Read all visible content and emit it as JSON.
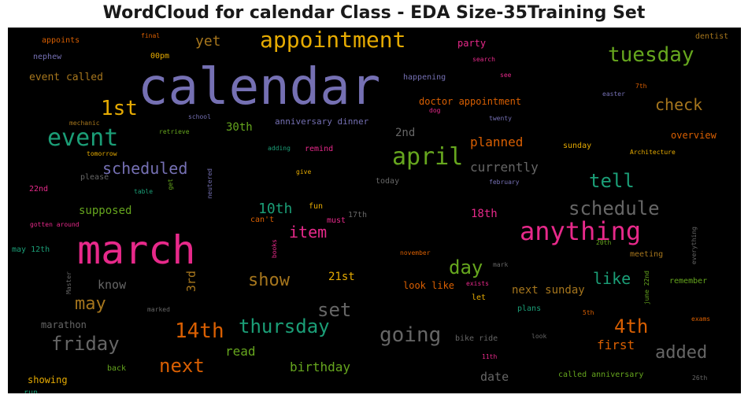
{
  "chart_data": {
    "type": "wordcloud",
    "title": "WordCloud for calendar Class - EDA Size-35Training Set",
    "background": "#000000",
    "words": [
      {
        "text": "calendar",
        "color": "#7570b3",
        "orientation": "horizontal"
      },
      {
        "text": "march",
        "color": "#e7298a",
        "orientation": "horizontal"
      },
      {
        "text": "appointment",
        "color": "#e6ab02",
        "orientation": "horizontal"
      },
      {
        "text": "anything",
        "color": "#e7298a",
        "orientation": "horizontal"
      },
      {
        "text": "tuesday",
        "color": "#66a61e",
        "orientation": "horizontal"
      },
      {
        "text": "event",
        "color": "#1b9e77",
        "orientation": "horizontal"
      },
      {
        "text": "april",
        "color": "#66a61e",
        "orientation": "horizontal"
      },
      {
        "text": "1st",
        "color": "#e6ab02",
        "orientation": "horizontal"
      },
      {
        "text": "schedule",
        "color": "#666666",
        "orientation": "horizontal"
      },
      {
        "text": "thursday",
        "color": "#1b9e77",
        "orientation": "horizontal"
      },
      {
        "text": "friday",
        "color": "#666666",
        "orientation": "horizontal"
      },
      {
        "text": "14th",
        "color": "#d95f02",
        "orientation": "horizontal"
      },
      {
        "text": "going",
        "color": "#666666",
        "orientation": "horizontal"
      },
      {
        "text": "4th",
        "color": "#d95f02",
        "orientation": "horizontal"
      },
      {
        "text": "next",
        "color": "#d95f02",
        "orientation": "horizontal"
      },
      {
        "text": "added",
        "color": "#666666",
        "orientation": "horizontal"
      },
      {
        "text": "tell",
        "color": "#1b9e77",
        "orientation": "horizontal"
      },
      {
        "text": "check",
        "color": "#a6761d",
        "orientation": "horizontal"
      },
      {
        "text": "scheduled",
        "color": "#7570b3",
        "orientation": "horizontal"
      },
      {
        "text": "day",
        "color": "#66a61e",
        "orientation": "horizontal"
      },
      {
        "text": "show",
        "color": "#a6761d",
        "orientation": "horizontal"
      },
      {
        "text": "may",
        "color": "#a6761d",
        "orientation": "horizontal"
      },
      {
        "text": "set",
        "color": "#666666",
        "orientation": "horizontal"
      },
      {
        "text": "item",
        "color": "#e7298a",
        "orientation": "horizontal"
      },
      {
        "text": "10th",
        "color": "#1b9e77",
        "orientation": "horizontal"
      },
      {
        "text": "yet",
        "color": "#a6761d",
        "orientation": "horizontal"
      },
      {
        "text": "like",
        "color": "#1b9e77",
        "orientation": "horizontal"
      },
      {
        "text": "planned",
        "color": "#d95f02",
        "orientation": "horizontal"
      },
      {
        "text": "currently",
        "color": "#666666",
        "orientation": "horizontal"
      },
      {
        "text": "birthday",
        "color": "#66a61e",
        "orientation": "horizontal"
      },
      {
        "text": "read",
        "color": "#66a61e",
        "orientation": "horizontal"
      },
      {
        "text": "first",
        "color": "#d95f02",
        "orientation": "horizontal"
      },
      {
        "text": "date",
        "color": "#666666",
        "orientation": "horizontal"
      },
      {
        "text": "next sunday",
        "color": "#a6761d",
        "orientation": "horizontal"
      },
      {
        "text": "know",
        "color": "#666666",
        "orientation": "horizontal"
      },
      {
        "text": "3rd",
        "color": "#a6761d",
        "orientation": "vertical"
      },
      {
        "text": "21st",
        "color": "#e6ab02",
        "orientation": "horizontal"
      },
      {
        "text": "30th",
        "color": "#66a61e",
        "orientation": "horizontal"
      },
      {
        "text": "supposed",
        "color": "#66a61e",
        "orientation": "horizontal"
      },
      {
        "text": "18th",
        "color": "#e7298a",
        "orientation": "horizontal"
      },
      {
        "text": "2nd",
        "color": "#666666",
        "orientation": "horizontal"
      },
      {
        "text": "event called",
        "color": "#a6761d",
        "orientation": "horizontal"
      },
      {
        "text": "doctor appointment",
        "color": "#d95f02",
        "orientation": "horizontal"
      },
      {
        "text": "anniversary dinner",
        "color": "#7570b3",
        "orientation": "horizontal"
      },
      {
        "text": "look like",
        "color": "#d95f02",
        "orientation": "horizontal"
      },
      {
        "text": "marathon",
        "color": "#666666",
        "orientation": "horizontal"
      },
      {
        "text": "showing",
        "color": "#e6ab02",
        "orientation": "horizontal"
      },
      {
        "text": "overview",
        "color": "#d95f02",
        "orientation": "horizontal"
      },
      {
        "text": "meeting",
        "color": "#a6761d",
        "orientation": "horizontal"
      },
      {
        "text": "remember",
        "color": "#66a61e",
        "orientation": "horizontal"
      },
      {
        "text": "called anniversary",
        "color": "#66a61e",
        "orientation": "horizontal"
      },
      {
        "text": "happening",
        "color": "#7570b3",
        "orientation": "horizontal"
      },
      {
        "text": "party",
        "color": "#e7298a",
        "orientation": "horizontal"
      },
      {
        "text": "bike ride",
        "color": "#666666",
        "orientation": "horizontal"
      },
      {
        "text": "plans",
        "color": "#1b9e77",
        "orientation": "horizontal"
      },
      {
        "text": "let",
        "color": "#e6ab02",
        "orientation": "horizontal"
      },
      {
        "text": "sunday",
        "color": "#e6ab02",
        "orientation": "horizontal"
      },
      {
        "text": "appoints",
        "color": "#d95f02",
        "orientation": "horizontal"
      },
      {
        "text": "nephew",
        "color": "#7570b3",
        "orientation": "horizontal"
      },
      {
        "text": "00pm",
        "color": "#e6ab02",
        "orientation": "horizontal"
      },
      {
        "text": "remind",
        "color": "#e7298a",
        "orientation": "horizontal"
      },
      {
        "text": "fun",
        "color": "#e6ab02",
        "orientation": "horizontal"
      },
      {
        "text": "can't",
        "color": "#d95f02",
        "orientation": "horizontal"
      },
      {
        "text": "must",
        "color": "#e7298a",
        "orientation": "horizontal"
      },
      {
        "text": "17th",
        "color": "#666666",
        "orientation": "horizontal"
      },
      {
        "text": "today",
        "color": "#666666",
        "orientation": "horizontal"
      },
      {
        "text": "please",
        "color": "#666666",
        "orientation": "horizontal"
      },
      {
        "text": "22nd",
        "color": "#e7298a",
        "orientation": "horizontal"
      },
      {
        "text": "may 12th",
        "color": "#1b9e77",
        "orientation": "horizontal"
      },
      {
        "text": "run",
        "color": "#1b9e77",
        "orientation": "horizontal"
      },
      {
        "text": "back",
        "color": "#66a61e",
        "orientation": "horizontal"
      },
      {
        "text": "dentist",
        "color": "#a6761d",
        "orientation": "horizontal"
      },
      {
        "text": "final",
        "color": "#d95f02",
        "orientation": "horizontal"
      },
      {
        "text": "search",
        "color": "#e7298a",
        "orientation": "horizontal"
      },
      {
        "text": "see",
        "color": "#e7298a",
        "orientation": "horizontal"
      },
      {
        "text": "7th",
        "color": "#d95f02",
        "orientation": "horizontal"
      },
      {
        "text": "easter",
        "color": "#7570b3",
        "orientation": "horizontal"
      },
      {
        "text": "dog",
        "color": "#e7298a",
        "orientation": "horizontal"
      },
      {
        "text": "twenty",
        "color": "#7570b3",
        "orientation": "horizontal"
      },
      {
        "text": "mechanic",
        "color": "#a6761d",
        "orientation": "horizontal"
      },
      {
        "text": "school",
        "color": "#7570b3",
        "orientation": "horizontal"
      },
      {
        "text": "retrieve",
        "color": "#66a61e",
        "orientation": "horizontal"
      },
      {
        "text": "adding",
        "color": "#1b9e77",
        "orientation": "horizontal"
      },
      {
        "text": "tomorrow",
        "color": "#e6ab02",
        "orientation": "horizontal"
      },
      {
        "text": "get",
        "color": "#66a61e",
        "orientation": "vertical"
      },
      {
        "text": "neutered",
        "color": "#7570b3",
        "orientation": "vertical"
      },
      {
        "text": "give",
        "color": "#e6ab02",
        "orientation": "horizontal"
      },
      {
        "text": "february",
        "color": "#7570b3",
        "orientation": "horizontal"
      },
      {
        "text": "Architecture",
        "color": "#e6ab02",
        "orientation": "horizontal"
      },
      {
        "text": "table",
        "color": "#1b9e77",
        "orientation": "horizontal"
      },
      {
        "text": "gotten around",
        "color": "#e7298a",
        "orientation": "horizontal"
      },
      {
        "text": "books",
        "color": "#e7298a",
        "orientation": "vertical"
      },
      {
        "text": "november",
        "color": "#d95f02",
        "orientation": "horizontal"
      },
      {
        "text": "20th",
        "color": "#66a61e",
        "orientation": "horizontal"
      },
      {
        "text": "everything",
        "color": "#666666",
        "orientation": "vertical"
      },
      {
        "text": "mark",
        "color": "#666666",
        "orientation": "horizontal"
      },
      {
        "text": "Master",
        "color": "#666666",
        "orientation": "vertical"
      },
      {
        "text": "exists",
        "color": "#e7298a",
        "orientation": "horizontal"
      },
      {
        "text": "june 22nd",
        "color": "#66a61e",
        "orientation": "vertical"
      },
      {
        "text": "exams",
        "color": "#d95f02",
        "orientation": "horizontal"
      },
      {
        "text": "marked",
        "color": "#666666",
        "orientation": "horizontal"
      },
      {
        "text": "5th",
        "color": "#d95f02",
        "orientation": "horizontal"
      },
      {
        "text": "look",
        "color": "#666666",
        "orientation": "horizontal"
      },
      {
        "text": "11th",
        "color": "#e7298a",
        "orientation": "horizontal"
      },
      {
        "text": "26th",
        "color": "#666666",
        "orientation": "horizontal"
      }
    ]
  }
}
